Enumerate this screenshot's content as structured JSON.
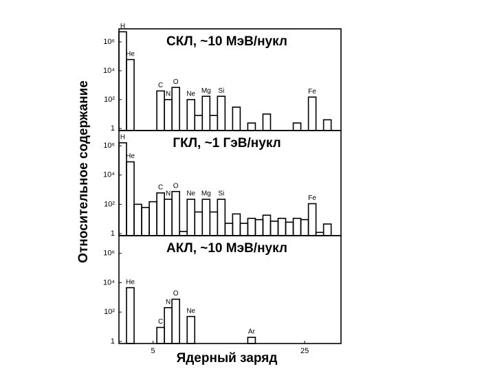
{
  "chart_data": [
    {
      "type": "bar",
      "title": "СКЛ, ~10 МэВ/нукл",
      "ylabel": "Относительное содержание",
      "x": [
        1,
        2,
        6,
        7,
        8,
        10,
        11,
        12,
        13,
        14,
        16,
        18,
        20,
        24,
        26,
        28
      ],
      "values": [
        5000000,
        60000,
        400,
        100,
        700,
        100,
        8,
        170,
        8,
        170,
        30,
        2.4,
        10,
        2.4,
        150,
        4
      ],
      "bar_labels": [
        "H",
        "He",
        "C",
        "N",
        "O",
        "Ne",
        null,
        "Mg",
        null,
        "Si",
        null,
        null,
        null,
        null,
        "Fe",
        null
      ],
      "color": "#000000",
      "log_y": true,
      "xlim": [
        0.5,
        29.8
      ],
      "ylim": [
        0.72,
        8000000
      ],
      "yticks": [
        1,
        {
          "value": 100,
          "label": "10²"
        },
        {
          "value": 10000,
          "label": "10⁴"
        },
        {
          "value": 1000000,
          "label": "10⁶"
        }
      ]
    },
    {
      "type": "bar",
      "title": "ГКЛ, ~1 ГэВ/нукл",
      "x": [
        1,
        2,
        3,
        4,
        5,
        6,
        7,
        8,
        9,
        10,
        11,
        12,
        13,
        14,
        15,
        16,
        17,
        18,
        19,
        20,
        21,
        22,
        23,
        24,
        25,
        26,
        27,
        28
      ],
      "values": [
        1600000,
        80000,
        100,
        60,
        150,
        600,
        220,
        750,
        1.4,
        220,
        30,
        220,
        30,
        220,
        5,
        22,
        5,
        11,
        9,
        18,
        7,
        11,
        6,
        11,
        9,
        110,
        1.2,
        4.5
      ],
      "bar_labels": [
        "H",
        "He",
        null,
        null,
        null,
        "C",
        "N",
        "O",
        null,
        "Ne",
        null,
        "Mg",
        null,
        "Si",
        null,
        null,
        null,
        null,
        null,
        null,
        null,
        null,
        null,
        null,
        null,
        "Fe",
        null,
        null
      ],
      "color": "#000000",
      "log_y": true,
      "xlim": [
        0.5,
        29.8
      ],
      "ylim": [
        0.72,
        11000000
      ],
      "yticks": [
        1,
        {
          "value": 100,
          "label": "10²"
        },
        {
          "value": 10000,
          "label": "10⁴"
        },
        {
          "value": 1000000,
          "label": "10⁶"
        }
      ]
    },
    {
      "type": "bar",
      "title": "АКЛ, ~10 МэВ/нукл",
      "xlabel": "Ядерный заряд",
      "x": [
        2,
        6,
        7,
        8,
        10,
        18
      ],
      "values": [
        4600,
        9,
        200,
        750,
        50,
        1.9
      ],
      "bar_labels": [
        "He",
        "C",
        "N",
        "O",
        "Ne",
        "Ar"
      ],
      "color": "#000000",
      "log_y": true,
      "xlim": [
        0.5,
        29.8
      ],
      "ylim": [
        0.72,
        16000000
      ],
      "xticks": [
        5,
        25
      ],
      "yticks": [
        1,
        {
          "value": 100,
          "label": "10²"
        },
        {
          "value": 10000,
          "label": "10⁴"
        },
        {
          "value": 1000000,
          "label": "10⁶"
        }
      ]
    }
  ]
}
